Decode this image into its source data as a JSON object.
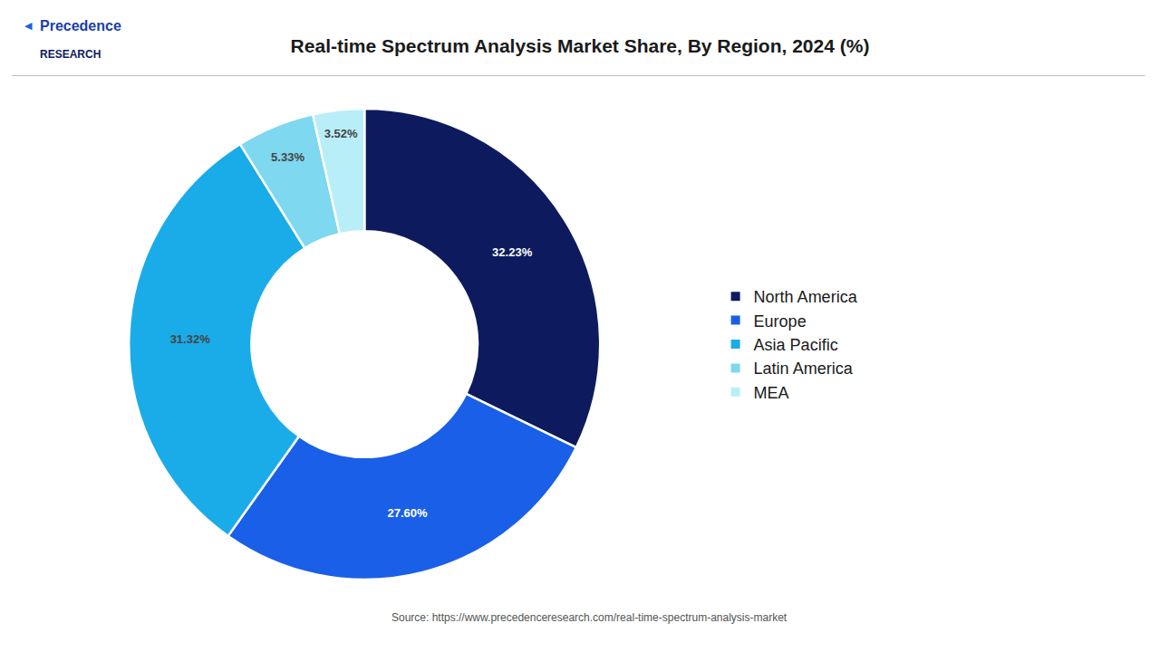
{
  "chart_data": {
    "type": "pie",
    "title": "Real-time Spectrum Analysis Market Share, By Region, 2024 (%)",
    "categories": [
      "North America",
      "Europe",
      "Asia Pacific",
      "Latin America",
      "MEA"
    ],
    "values": [
      32.23,
      27.6,
      31.32,
      5.33,
      3.52
    ],
    "value_labels": [
      "32.23%",
      "27.60%",
      "31.32%",
      "5.33%",
      "3.52%"
    ],
    "colors": [
      "#0d1b5e",
      "#1a5fe8",
      "#1aace8",
      "#7dd8f0",
      "#b8eef8"
    ],
    "data_labels": true,
    "legend": "right",
    "annotations": [
      "◀",
      "Precedence",
      "RESEARCH",
      "Source: https://www.precedenceresearch.com/real-time-spectrum-analysis-market"
    ]
  }
}
